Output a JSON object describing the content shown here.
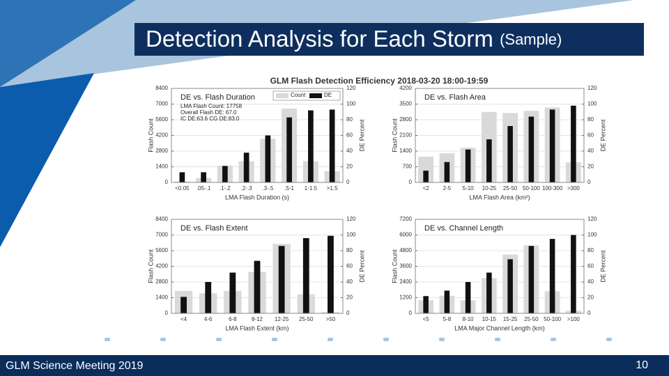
{
  "slide": {
    "title": "Detection Analysis for Each Storm",
    "title_note": "(Sample)",
    "footer": "GLM Science Meeting 2019",
    "page": "10"
  },
  "figure_title": "GLM Flash Detection Efficiency 2018-03-20 18:00-19:59",
  "chart_data": [
    {
      "type": "bar",
      "title": "DE vs. Flash Duration",
      "x_label": "LMA Flash Duration (s)",
      "y_label": "Flash Count",
      "y2_label": "DE Percent",
      "annotations": [
        "LMA Flash Count: 17758",
        "Overall Flash DE: 67.0",
        "IC DE:63.6  CG DE:83.0"
      ],
      "categories": [
        "<0.05",
        ".05-.1",
        ".1-.2",
        ".2-.3",
        ".3-.5",
        ".5-1",
        "1-1.5",
        ">1.5"
      ],
      "series": [
        {
          "name": "Count",
          "color": "#d9d9d9",
          "values": [
            100,
            400,
            1500,
            1900,
            3900,
            6600,
            1900,
            1000
          ]
        },
        {
          "name": "DE",
          "color": "#111111",
          "axis": "y2",
          "values": [
            13,
            13,
            21,
            38,
            60,
            83,
            92,
            93
          ]
        }
      ],
      "ylim": [
        0,
        8400
      ],
      "yticks": [
        0,
        1400,
        2800,
        4200,
        5600,
        7000,
        8400
      ],
      "y2lim": [
        0,
        120
      ],
      "y2ticks": [
        0,
        20,
        40,
        60,
        80,
        100,
        120
      ],
      "grid": true,
      "legend": "upper right"
    },
    {
      "type": "bar",
      "title": "DE vs. Flash Area",
      "x_label": "LMA Flash Area (km²)",
      "y_label": "Flash Count",
      "y2_label": "DE Percent",
      "categories": [
        "<2",
        "2-5",
        "5-10",
        "10-25",
        "25-50",
        "50-100",
        "100-300",
        ">300"
      ],
      "series": [
        {
          "color": "#d9d9d9",
          "values": [
            1150,
            1300,
            1550,
            3150,
            3100,
            3200,
            3350,
            900
          ]
        },
        {
          "color": "#111111",
          "axis": "y2",
          "values": [
            15,
            26,
            42,
            55,
            72,
            84,
            93,
            98
          ]
        }
      ],
      "ylim": [
        0,
        4200
      ],
      "yticks": [
        0,
        700,
        1400,
        2100,
        2800,
        3500,
        4200
      ],
      "y2lim": [
        0,
        120
      ],
      "y2ticks": [
        0,
        20,
        40,
        60,
        80,
        100,
        120
      ],
      "grid": true
    },
    {
      "type": "bar",
      "title": "DE vs. Flash Extent",
      "x_label": "LMA Flash Extent (km)",
      "y_label": "Flash Count",
      "y2_label": "DE Percent",
      "categories": [
        "<4",
        "4-6",
        "6-8",
        "8-12",
        "12-25",
        "25-50",
        ">50"
      ],
      "series": [
        {
          "color": "#d9d9d9",
          "values": [
            2000,
            1800,
            2000,
            3700,
            6200,
            1700,
            100
          ]
        },
        {
          "color": "#111111",
          "axis": "y2",
          "values": [
            21,
            40,
            52,
            67,
            86,
            96,
            99
          ]
        }
      ],
      "ylim": [
        0,
        8400
      ],
      "yticks": [
        0,
        1400,
        2800,
        4200,
        5600,
        7000,
        8400
      ],
      "y2lim": [
        0,
        120
      ],
      "y2ticks": [
        0,
        20,
        40,
        60,
        80,
        100,
        120
      ],
      "grid": true
    },
    {
      "type": "bar",
      "title": "DE vs. Channel Length",
      "x_label": "LMA Major Channel Length (km)",
      "y_label": "Flash Count",
      "y2_label": "DE Percent",
      "categories": [
        "<5",
        "5-8",
        "8-10",
        "10-15",
        "15-25",
        "25-50",
        "50-100",
        ">100"
      ],
      "series": [
        {
          "color": "#d9d9d9",
          "values": [
            1000,
            1350,
            1000,
            2700,
            4500,
            5200,
            1700,
            200
          ]
        },
        {
          "color": "#111111",
          "axis": "y2",
          "values": [
            22,
            29,
            40,
            52,
            69,
            86,
            95,
            100
          ]
        }
      ],
      "ylim": [
        0,
        7200
      ],
      "yticks": [
        0,
        1200,
        2400,
        3600,
        4800,
        6000,
        7200
      ],
      "y2lim": [
        0,
        120
      ],
      "y2ticks": [
        0,
        20,
        40,
        60,
        80,
        100,
        120
      ],
      "grid": true
    }
  ]
}
